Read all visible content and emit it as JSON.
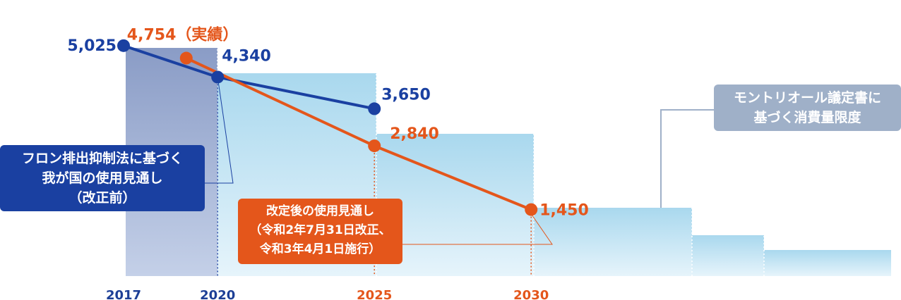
{
  "chart_data": {
    "type": "line",
    "x_ticks": [
      {
        "label": "2017",
        "year": 2017,
        "color": "#1d3f96"
      },
      {
        "label": "2020",
        "year": 2020,
        "color": "#1d3f96"
      },
      {
        "label": "2025",
        "year": 2025,
        "color": "#e4561b"
      },
      {
        "label": "2030",
        "year": 2030,
        "color": "#e4561b"
      }
    ],
    "ylim": [
      0,
      6000
    ],
    "montreal_limit": {
      "label": "モントリオール議定書に\n基づく消費量限度",
      "color": "#9fb0c8"
    },
    "series": [
      {
        "name": "フロン排出抑制法に基づく\n我が国の使用見通し\n（改正前）",
        "color": "#1a40a1",
        "points": [
          {
            "year": 2017,
            "value": 5025,
            "label": "5,025"
          },
          {
            "year": 2020,
            "value": 4340,
            "label": "4,340"
          },
          {
            "year": 2025,
            "value": 3650,
            "label": "3,650"
          }
        ]
      },
      {
        "name": "改定後の使用見通し\n（令和2年7月31日改正、\n令和3年4月1日施行）",
        "color": "#e4561b",
        "points": [
          {
            "year": 2019,
            "value": 4754,
            "label": "4,754（実績）"
          },
          {
            "year": 2025,
            "value": 2840,
            "label": "2,840"
          },
          {
            "year": 2030,
            "value": 1450,
            "label": "1,450"
          }
        ]
      }
    ]
  }
}
